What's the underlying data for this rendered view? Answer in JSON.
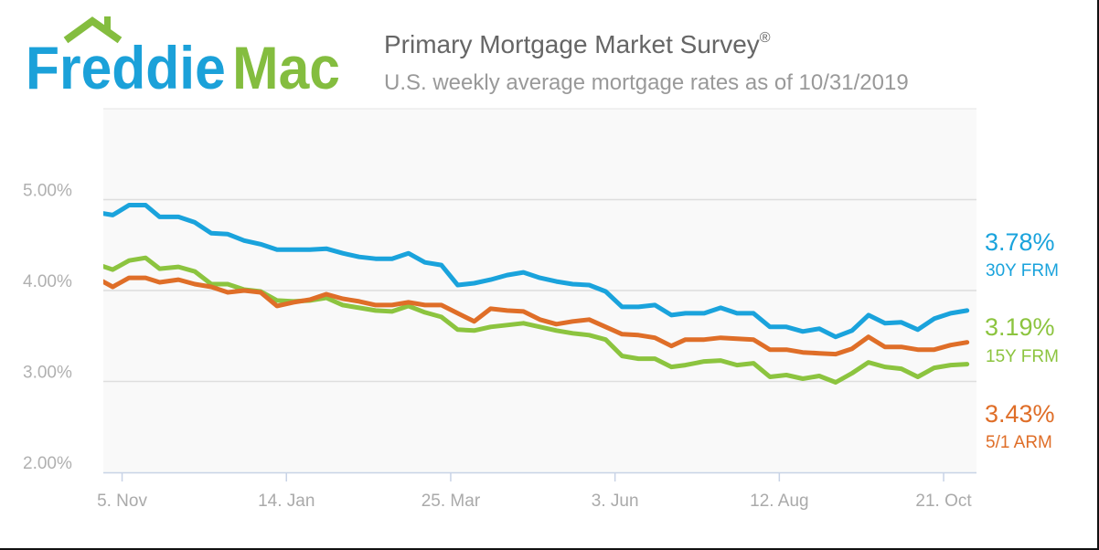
{
  "logo": {
    "part1": "Freddie",
    "part2": "Mac",
    "blue": "#1ba1d9",
    "green": "#84bd3f"
  },
  "header": {
    "title": "Primary Mortgage Market Survey",
    "title_mark": "®",
    "subtitle": "U.S. weekly average mortgage rates as of 10/31/2019"
  },
  "chart_data": {
    "type": "line",
    "title": "Primary Mortgage Market Survey®",
    "subtitle": "U.S. weekly average mortgage rates as of 10/31/2019",
    "xlabel": "",
    "ylabel": "",
    "xlim": [
      "2018-10-28",
      "2019-11-04"
    ],
    "ylim": [
      2.0,
      6.0
    ],
    "grid": true,
    "x_ticks": [
      {
        "date": "2018-11-05",
        "label": "5. Nov"
      },
      {
        "date": "2019-01-14",
        "label": "14. Jan"
      },
      {
        "date": "2019-03-25",
        "label": "25. Mar"
      },
      {
        "date": "2019-06-03",
        "label": "3. Jun"
      },
      {
        "date": "2019-08-12",
        "label": "12. Aug"
      },
      {
        "date": "2019-10-21",
        "label": "21. Oct"
      }
    ],
    "y_ticks": [
      {
        "value": 2,
        "label": "2.00%"
      },
      {
        "value": 3,
        "label": "3.00%"
      },
      {
        "value": 4,
        "label": "4.00%"
      },
      {
        "value": 5,
        "label": "5.00%"
      }
    ],
    "legend": "right",
    "x": [
      "2018-10-25",
      "2018-11-01",
      "2018-11-08",
      "2018-11-15",
      "2018-11-21",
      "2018-11-29",
      "2018-12-06",
      "2018-12-13",
      "2018-12-20",
      "2018-12-27",
      "2019-01-03",
      "2019-01-10",
      "2019-01-17",
      "2019-01-24",
      "2019-01-31",
      "2019-02-07",
      "2019-02-14",
      "2019-02-21",
      "2019-02-28",
      "2019-03-07",
      "2019-03-14",
      "2019-03-21",
      "2019-03-28",
      "2019-04-04",
      "2019-04-11",
      "2019-04-18",
      "2019-04-25",
      "2019-05-02",
      "2019-05-09",
      "2019-05-16",
      "2019-05-23",
      "2019-05-30",
      "2019-06-06",
      "2019-06-13",
      "2019-06-20",
      "2019-06-27",
      "2019-07-03",
      "2019-07-11",
      "2019-07-18",
      "2019-07-25",
      "2019-08-01",
      "2019-08-08",
      "2019-08-15",
      "2019-08-22",
      "2019-08-29",
      "2019-09-05",
      "2019-09-12",
      "2019-09-19",
      "2019-09-26",
      "2019-10-03",
      "2019-10-10",
      "2019-10-17",
      "2019-10-24",
      "2019-10-31"
    ],
    "series": [
      {
        "name": "30Y FRM",
        "latest": "3.78%",
        "color": "#1aa3dc",
        "values": [
          4.86,
          4.83,
          4.94,
          4.94,
          4.81,
          4.81,
          4.75,
          4.63,
          4.62,
          4.55,
          4.51,
          4.45,
          4.45,
          4.45,
          4.46,
          4.41,
          4.37,
          4.35,
          4.35,
          4.41,
          4.31,
          4.28,
          4.06,
          4.08,
          4.12,
          4.17,
          4.2,
          4.14,
          4.1,
          4.07,
          4.06,
          3.99,
          3.82,
          3.82,
          3.84,
          3.73,
          3.75,
          3.75,
          3.81,
          3.75,
          3.75,
          3.6,
          3.6,
          3.55,
          3.58,
          3.49,
          3.56,
          3.73,
          3.64,
          3.65,
          3.57,
          3.69,
          3.75,
          3.78
        ]
      },
      {
        "name": "15Y FRM",
        "latest": "3.19%",
        "color": "#8cc43f",
        "values": [
          4.29,
          4.23,
          4.33,
          4.36,
          4.24,
          4.26,
          4.21,
          4.07,
          4.07,
          4.01,
          3.99,
          3.89,
          3.88,
          3.89,
          3.92,
          3.84,
          3.81,
          3.78,
          3.77,
          3.83,
          3.76,
          3.71,
          3.57,
          3.56,
          3.6,
          3.62,
          3.64,
          3.6,
          3.56,
          3.53,
          3.51,
          3.46,
          3.28,
          3.25,
          3.25,
          3.16,
          3.18,
          3.22,
          3.23,
          3.18,
          3.2,
          3.05,
          3.07,
          3.03,
          3.06,
          2.99,
          3.09,
          3.21,
          3.16,
          3.14,
          3.05,
          3.15,
          3.18,
          3.19
        ]
      },
      {
        "name": "5/1 ARM",
        "latest": "3.43%",
        "color": "#df6e28",
        "values": [
          4.14,
          4.04,
          4.14,
          4.14,
          4.09,
          4.12,
          4.07,
          4.04,
          3.98,
          4.0,
          3.98,
          3.83,
          3.87,
          3.9,
          3.96,
          3.91,
          3.88,
          3.84,
          3.84,
          3.87,
          3.84,
          3.84,
          3.75,
          3.66,
          3.8,
          3.78,
          3.77,
          3.68,
          3.63,
          3.66,
          3.68,
          3.6,
          3.52,
          3.51,
          3.48,
          3.39,
          3.46,
          3.46,
          3.48,
          3.47,
          3.46,
          3.35,
          3.35,
          3.32,
          3.31,
          3.3,
          3.36,
          3.49,
          3.38,
          3.38,
          3.35,
          3.35,
          3.4,
          3.43
        ]
      }
    ]
  }
}
